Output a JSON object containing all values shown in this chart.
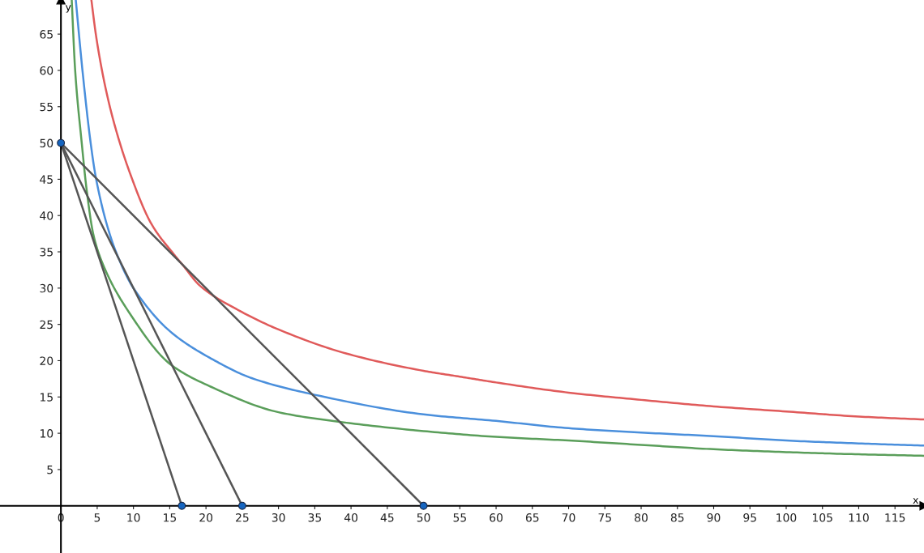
{
  "chart_data": {
    "type": "line",
    "xlabel": "x",
    "ylabel": "y",
    "xlim": [
      -8.4,
      119
    ],
    "ylim": [
      -6.5,
      69.7
    ],
    "xticks": [
      0,
      5,
      10,
      15,
      20,
      25,
      30,
      35,
      40,
      45,
      50,
      55,
      60,
      65,
      70,
      75,
      80,
      85,
      90,
      95,
      100,
      105,
      110,
      115
    ],
    "yticks": [
      5,
      10,
      15,
      20,
      25,
      30,
      35,
      40,
      45,
      50,
      55,
      60,
      65
    ],
    "grid": false,
    "legend": false,
    "marker": "none",
    "line_style": "solid",
    "series": [
      {
        "color": "#e05a5a",
        "x": [
          4.2,
          4.84,
          5.96,
          7.26,
          9.5,
          12.5,
          15.46,
          16.7,
          19.2,
          24.4,
          30,
          39.3,
          50,
          55,
          60,
          70,
          80,
          90,
          100,
          110,
          119
        ],
        "values": [
          69.7,
          64.8,
          58.5,
          53.0,
          45.9,
          38.8,
          34.8,
          33.3,
          30.3,
          27.0,
          24.3,
          21.0,
          18.6,
          17.8,
          17.0,
          15.6,
          14.6,
          13.7,
          13.0,
          12.3,
          11.9
        ]
      },
      {
        "color": "#4a8fdc",
        "x": [
          2.05,
          2.98,
          4.1,
          4.84,
          6.9,
          8.3,
          8.94,
          10.06,
          15.1,
          20.7,
          26.3,
          35.0,
          50,
          60,
          70,
          80,
          90,
          100,
          110,
          119
        ],
        "values": [
          69.7,
          59.9,
          50.0,
          45.1,
          36.9,
          33.3,
          31.9,
          29.9,
          24.0,
          20.3,
          17.6,
          15.3,
          12.6,
          11.7,
          10.7,
          10.1,
          9.6,
          9.0,
          8.6,
          8.3
        ]
      },
      {
        "color": "#5a9e5a",
        "x": [
          1.49,
          1.97,
          2.87,
          3.54,
          4.47,
          5.78,
          9.5,
          15.1,
          20.7,
          30,
          38.2,
          50,
          60,
          70,
          80,
          90,
          100,
          110,
          119
        ],
        "values": [
          69.7,
          59.9,
          50.0,
          43.6,
          37.4,
          33.3,
          26.5,
          19.5,
          16.4,
          12.9,
          11.6,
          10.3,
          9.5,
          9.0,
          8.4,
          7.8,
          7.4,
          7.1,
          6.9
        ]
      },
      {
        "type": "line",
        "color": "#555555",
        "x": [
          0,
          16.67
        ],
        "values": [
          50,
          0
        ]
      },
      {
        "type": "line",
        "color": "#555555",
        "x": [
          0,
          25
        ],
        "values": [
          50,
          0
        ]
      },
      {
        "type": "line",
        "color": "#555555",
        "x": [
          0,
          50
        ],
        "values": [
          50,
          0
        ]
      },
      {
        "type": "scatter",
        "color": "#1565c0",
        "marker": "circle",
        "x": [
          0,
          16.67,
          25,
          50
        ],
        "values": [
          50,
          0,
          0,
          0
        ]
      }
    ]
  }
}
